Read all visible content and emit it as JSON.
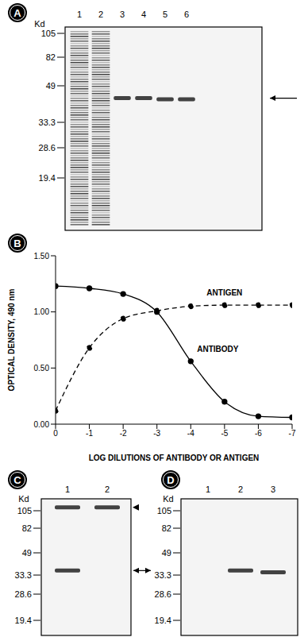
{
  "panel_A": {
    "label": "A",
    "unit": "Kd",
    "lanes": [
      "1",
      "2",
      "3",
      "4",
      "5",
      "6"
    ],
    "markers": [
      105,
      82,
      49,
      33.3,
      28.6,
      19.4
    ],
    "bands": [
      {
        "lane": 1,
        "type": "smear"
      },
      {
        "lane": 2,
        "type": "smear"
      },
      {
        "lane": 3,
        "kd": 43
      },
      {
        "lane": 4,
        "kd": 43
      },
      {
        "lane": 5,
        "kd": 42.5
      },
      {
        "lane": 6,
        "kd": 42.5
      }
    ],
    "arrow_kd": 43
  },
  "chart_data": {
    "type": "line",
    "panel_label": "B",
    "x_label": "LOG DILUTIONS OF ANTIBODY OR ANTIGEN",
    "y_label": "OPTICAL DENSITY, 490 nm",
    "x": [
      0,
      -1,
      -2,
      -3,
      -4,
      -5,
      -6,
      -7
    ],
    "xlim": [
      0,
      -7
    ],
    "xticks": [
      0,
      -1,
      -2,
      -3,
      -4,
      -5,
      -6,
      -7
    ],
    "ylim": [
      0,
      1.5
    ],
    "yticks": [
      {
        "value": 0,
        "label": "0.00"
      },
      {
        "value": 0.5,
        "label": "0.50"
      },
      {
        "value": 1,
        "label": "1.00"
      },
      {
        "value": 1.5,
        "label": "1.50"
      }
    ],
    "grid": false,
    "series": [
      {
        "name": "ANTIGEN",
        "color": "#000000",
        "marker": "circle",
        "line_style": "dashed",
        "values": [
          0.12,
          0.68,
          0.94,
          1.01,
          1.05,
          1.06,
          1.06,
          1.06
        ]
      },
      {
        "name": "ANTIBODY",
        "color": "#000000",
        "marker": "circle",
        "line_style": "solid",
        "values": [
          1.23,
          1.21,
          1.16,
          1.0,
          0.56,
          0.2,
          0.07,
          0.06
        ]
      }
    ]
  },
  "panel_C": {
    "label": "C",
    "unit": "Kd",
    "lanes": [
      "1",
      "2"
    ],
    "markers": [
      105,
      82,
      49,
      33.3,
      28.6,
      19.4
    ],
    "bands": [
      {
        "lane": 1,
        "kd": 110
      },
      {
        "lane": 2,
        "kd": 110
      },
      {
        "lane": 1,
        "kd": 36
      }
    ],
    "arrowhead_kd": 110,
    "arrow_kd": 36
  },
  "panel_D": {
    "label": "D",
    "unit": "Kd",
    "lanes": [
      "1",
      "2",
      "3"
    ],
    "markers": [
      105,
      82,
      49,
      33.3,
      28.6,
      19.4
    ],
    "bands": [
      {
        "lane": 2,
        "kd": 36
      },
      {
        "lane": 3,
        "kd": 35
      }
    ]
  }
}
